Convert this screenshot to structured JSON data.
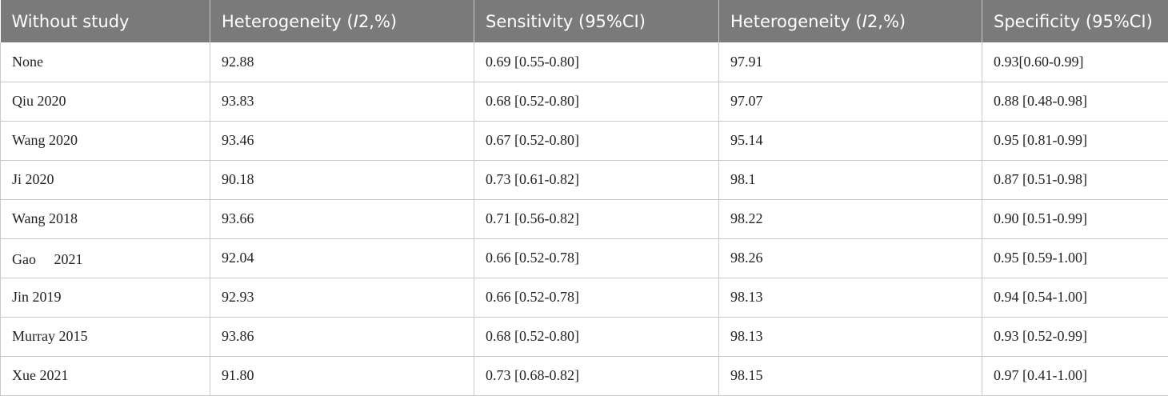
{
  "table": {
    "headers": [
      {
        "text": "Without study"
      },
      {
        "prefix": "Heterogeneity (",
        "italic": "I",
        "suffix": "2,%)"
      },
      {
        "text": "Sensitivity (95%CI)"
      },
      {
        "prefix": "Heterogeneity (",
        "italic": "I",
        "suffix": "2,%)"
      },
      {
        "text": "Specificity (95%CI)"
      }
    ],
    "rows": [
      [
        "None",
        "92.88",
        "0.69 [0.55-0.80]",
        "97.91",
        "0.93[0.60-0.99]"
      ],
      [
        "Qiu 2020",
        "93.83",
        "0.68 [0.52-0.80]",
        "97.07",
        "0.88 [0.48-0.98]"
      ],
      [
        "Wang 2020",
        "93.46",
        "0.67 [0.52-0.80]",
        "95.14",
        "0.95 [0.81-0.99]"
      ],
      [
        "Ji 2020",
        "90.18",
        "0.73 [0.61-0.82]",
        "98.1",
        "0.87 [0.51-0.98]"
      ],
      [
        "Wang 2018",
        "93.66",
        "0.71 [0.56-0.82]",
        "98.22",
        "0.90 [0.51-0.99]"
      ],
      [
        "Gao　 2021",
        "92.04",
        "0.66 [0.52-0.78]",
        "98.26",
        "0.95 [0.59-1.00]"
      ],
      [
        "Jin 2019",
        "92.93",
        "0.66 [0.52-0.78]",
        "98.13",
        "0.94 [0.54-1.00]"
      ],
      [
        "Murray 2015",
        "93.86",
        "0.68 [0.52-0.80]",
        "98.13",
        "0.93 [0.52-0.99]"
      ],
      [
        "Xue 2021",
        "91.80",
        "0.73 [0.68-0.82]",
        "98.15",
        "0.97 [0.41-1.00]"
      ]
    ]
  }
}
